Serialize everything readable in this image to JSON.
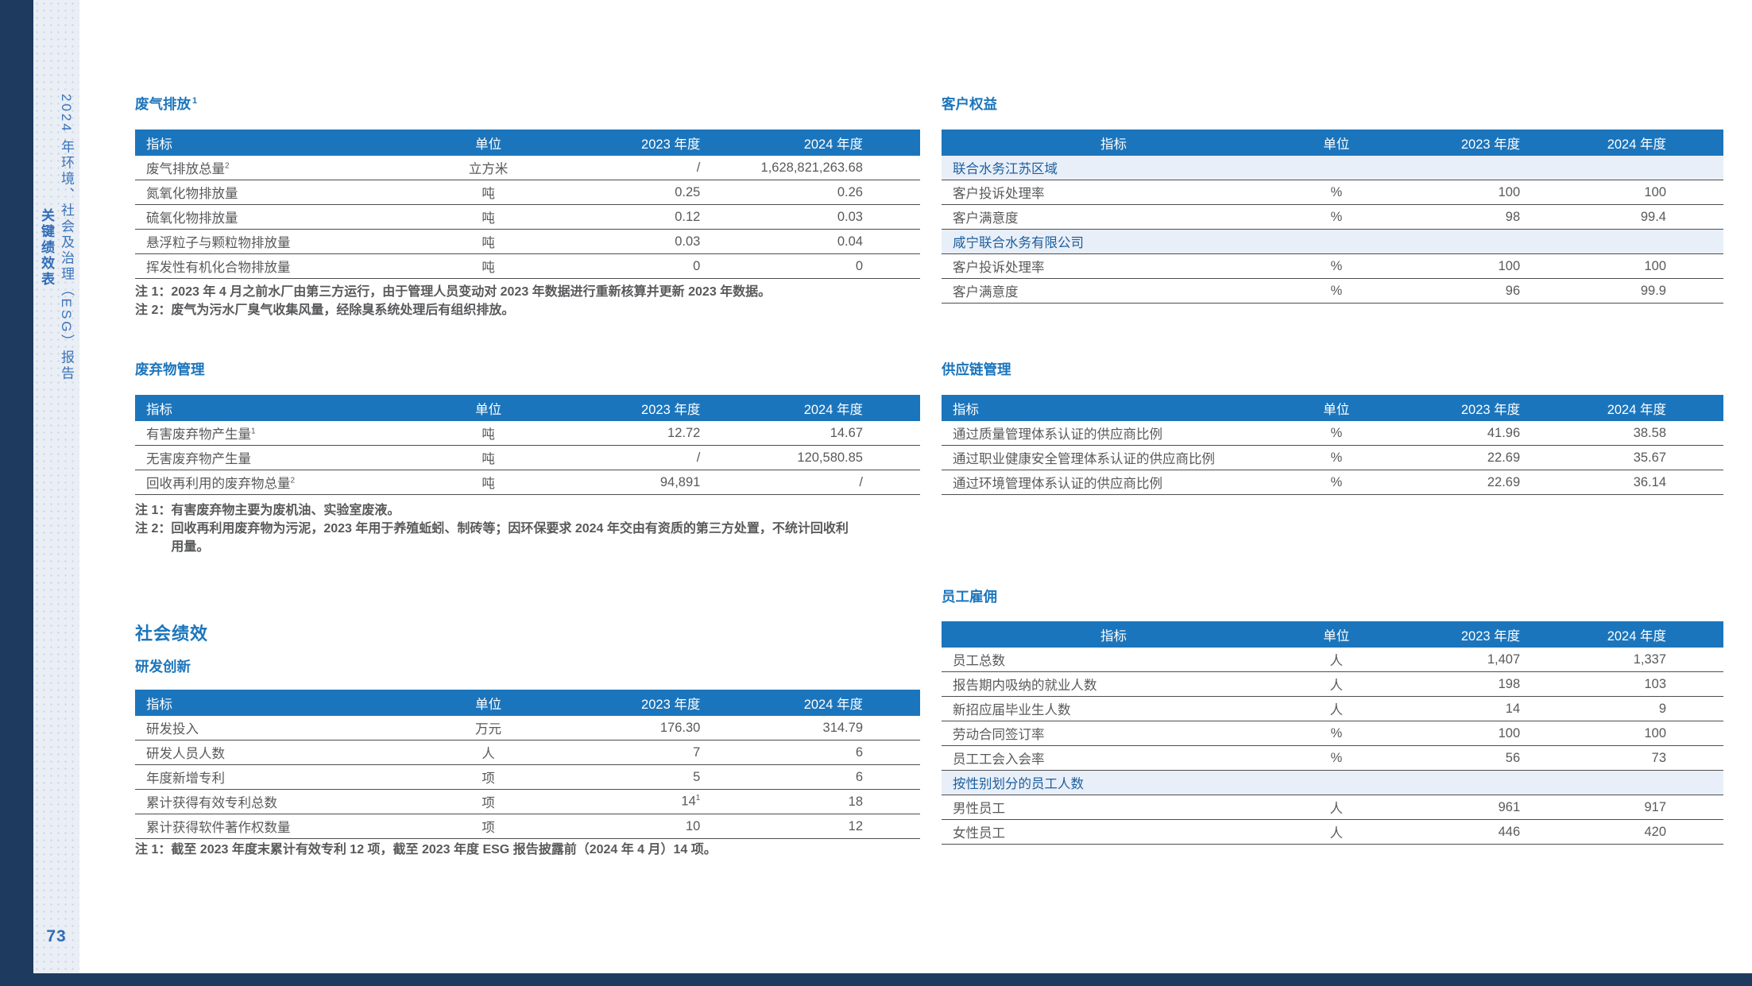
{
  "page": {
    "number": "73"
  },
  "sidebar": {
    "report_title": "2024 年环境、社会及治理（ESG）报告",
    "section_label": "关键绩效表"
  },
  "colors": {
    "header_blue": "#1B75BC",
    "navy_edge": "#1E3A5E",
    "sidebar_bg": "#EAEEF5",
    "subheader_bg": "#E9EFF8",
    "body_text": "#58595B"
  },
  "columns": {
    "indicator": "指标",
    "unit": "单位",
    "y2023": "2023 年度",
    "y2024": "2024 年度"
  },
  "section_heading": "社会绩效",
  "tables": {
    "waste_gas": {
      "title": "废气排放",
      "title_sup": "1",
      "rows": [
        {
          "type": "data",
          "label": "废气排放总量",
          "label_sup": "2",
          "unit": "立方米",
          "v2023": "/",
          "v2024": "1,628,821,263.68"
        },
        {
          "type": "data",
          "label": "氮氧化物排放量",
          "unit": "吨",
          "v2023": "0.25",
          "v2024": "0.26"
        },
        {
          "type": "data",
          "label": "硫氧化物排放量",
          "unit": "吨",
          "v2023": "0.12",
          "v2024": "0.03"
        },
        {
          "type": "data",
          "label": "悬浮粒子与颗粒物排放量",
          "unit": "吨",
          "v2023": "0.03",
          "v2024": "0.04"
        },
        {
          "type": "data",
          "label": "挥发性有机化合物排放量",
          "unit": "吨",
          "v2023": "0",
          "v2024": "0"
        }
      ],
      "notes": [
        {
          "label": "注 1：",
          "text": "2023 年 4 月之前水厂由第三方运行，由于管理人员变动对 2023 年数据进行重新核算并更新 2023 年数据。"
        },
        {
          "label": "注 2：",
          "text": "废气为污水厂臭气收集风量，经除臭系统处理后有组织排放。"
        }
      ]
    },
    "waste_mgmt": {
      "title": "废弃物管理",
      "rows": [
        {
          "type": "data",
          "label": "有害废弃物产生量",
          "label_sup": "1",
          "unit": "吨",
          "v2023": "12.72",
          "v2024": "14.67"
        },
        {
          "type": "data",
          "label": "无害废弃物产生量",
          "unit": "吨",
          "v2023": "/",
          "v2024": "120,580.85"
        },
        {
          "type": "data",
          "label": "回收再利用的废弃物总量",
          "label_sup": "2",
          "unit": "吨",
          "v2023": "94,891",
          "v2024": "/"
        }
      ],
      "notes": [
        {
          "label": "注 1：",
          "text": "有害废弃物主要为废机油、实验室废液。"
        },
        {
          "label": "注 2：",
          "text": "回收再利用废弃物为污泥，2023 年用于养殖蚯蚓、制砖等；因环保要求 2024 年交由有资质的第三方处置，不统计回收利用量。"
        }
      ]
    },
    "rnd": {
      "title": "研发创新",
      "rows": [
        {
          "type": "data",
          "label": "研发投入",
          "unit": "万元",
          "v2023": "176.30",
          "v2024": "314.79"
        },
        {
          "type": "data",
          "label": "研发人员人数",
          "unit": "人",
          "v2023": "7",
          "v2024": "6"
        },
        {
          "type": "data",
          "label": "年度新增专利",
          "unit": "项",
          "v2023": "5",
          "v2024": "6"
        },
        {
          "type": "data",
          "label": "累计获得有效专利总数",
          "unit": "项",
          "v2023": "14",
          "v2023_sup": "1",
          "v2024": "18"
        },
        {
          "type": "data",
          "label": "累计获得软件著作权数量",
          "unit": "项",
          "v2023": "10",
          "v2024": "12"
        }
      ],
      "notes": [
        {
          "label": "注 1：",
          "text": "截至 2023 年度末累计有效专利 12 项，截至 2023 年度 ESG 报告披露前（2024 年 4 月）14 项。"
        }
      ]
    },
    "customer": {
      "title": "客户权益",
      "rows": [
        {
          "type": "subheader",
          "label": "联合水务江苏区域"
        },
        {
          "type": "data",
          "label": "客户投诉处理率",
          "unit": "%",
          "v2023": "100",
          "v2024": "100"
        },
        {
          "type": "data",
          "label": "客户满意度",
          "unit": "%",
          "v2023": "98",
          "v2024": "99.4"
        },
        {
          "type": "subheader",
          "label": "咸宁联合水务有限公司"
        },
        {
          "type": "data",
          "label": "客户投诉处理率",
          "unit": "%",
          "v2023": "100",
          "v2024": "100"
        },
        {
          "type": "data",
          "label": "客户满意度",
          "unit": "%",
          "v2023": "96",
          "v2024": "99.9"
        }
      ],
      "notes": []
    },
    "supply": {
      "title": "供应链管理",
      "rows": [
        {
          "type": "data",
          "label": "通过质量管理体系认证的供应商比例",
          "unit": "%",
          "v2023": "41.96",
          "v2024": "38.58"
        },
        {
          "type": "data",
          "label": "通过职业健康安全管理体系认证的供应商比例",
          "unit": "%",
          "v2023": "22.69",
          "v2024": "35.67"
        },
        {
          "type": "data",
          "label": "通过环境管理体系认证的供应商比例",
          "unit": "%",
          "v2023": "22.69",
          "v2024": "36.14"
        }
      ],
      "notes": []
    },
    "employment": {
      "title": "员工雇佣",
      "rows": [
        {
          "type": "data",
          "label": "员工总数",
          "unit": "人",
          "v2023": "1,407",
          "v2024": "1,337"
        },
        {
          "type": "data",
          "label": "报告期内吸纳的就业人数",
          "unit": "人",
          "v2023": "198",
          "v2024": "103"
        },
        {
          "type": "data",
          "label": "新招应届毕业生人数",
          "unit": "人",
          "v2023": "14",
          "v2024": "9"
        },
        {
          "type": "data",
          "label": "劳动合同签订率",
          "unit": "%",
          "v2023": "100",
          "v2024": "100"
        },
        {
          "type": "data",
          "label": "员工工会入会率",
          "unit": "%",
          "v2023": "56",
          "v2024": "73"
        },
        {
          "type": "subheader",
          "label": "按性别划分的员工人数"
        },
        {
          "type": "data",
          "label": "男性员工",
          "unit": "人",
          "v2023": "961",
          "v2024": "917"
        },
        {
          "type": "data",
          "label": "女性员工",
          "unit": "人",
          "v2023": "446",
          "v2024": "420"
        }
      ],
      "notes": []
    }
  }
}
